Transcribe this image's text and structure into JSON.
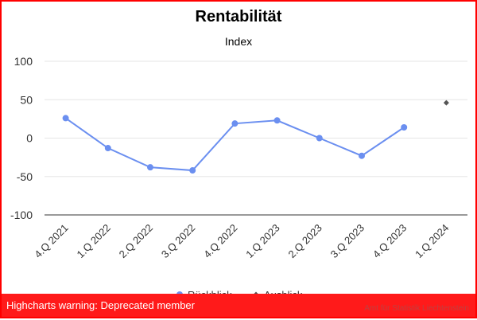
{
  "chart_data": {
    "type": "line",
    "title": "Rentabilität",
    "subtitle": "Index",
    "categories": [
      "4.Q 2021",
      "1.Q 2022",
      "2.Q 2022",
      "3.Q 2022",
      "4.Q 2022",
      "1.Q 2023",
      "2.Q 2023",
      "3.Q 2023",
      "4.Q 2023",
      "1.Q 2024"
    ],
    "series": [
      {
        "name": "Rückblick",
        "values": [
          26,
          -13,
          -38,
          -42,
          19,
          23,
          0,
          -23,
          14,
          null
        ],
        "color": "#6b8ff0",
        "marker": "circle"
      },
      {
        "name": "Ausblick",
        "values": [
          null,
          null,
          null,
          null,
          null,
          null,
          null,
          null,
          null,
          46
        ],
        "color": "#555555",
        "marker": "diamond"
      }
    ],
    "ylim": [
      -100,
      100
    ],
    "yticks": [
      "100",
      "50",
      "0",
      "-50",
      "-100"
    ],
    "grid": true,
    "legend": "bottom-center"
  },
  "warning": "Highcharts warning: Deprecated member",
  "credits": "Amt für Statistik Liechtenstein"
}
